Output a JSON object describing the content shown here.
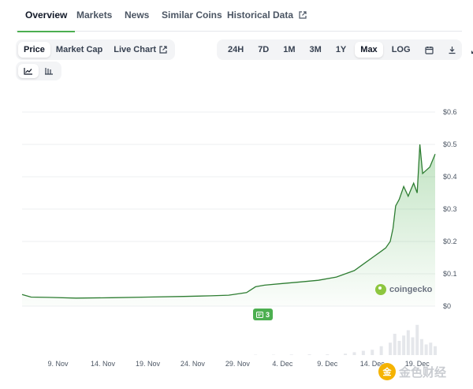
{
  "nav": {
    "tabs": [
      {
        "label": "Overview",
        "active": true
      },
      {
        "label": "Markets"
      },
      {
        "label": "News"
      },
      {
        "label": "Similar Coins"
      },
      {
        "label": "Historical Data",
        "icon": "external-link-icon"
      }
    ]
  },
  "metric_toggle": {
    "items": [
      {
        "label": "Price",
        "active": true
      },
      {
        "label": "Market Cap"
      },
      {
        "label": "Live Chart",
        "icon": "external-link-icon"
      }
    ]
  },
  "range_toggle": {
    "items": [
      {
        "label": "24H"
      },
      {
        "label": "7D"
      },
      {
        "label": "1M"
      },
      {
        "label": "3M"
      },
      {
        "label": "1Y"
      },
      {
        "label": "Max",
        "active": true
      },
      {
        "label": "LOG"
      }
    ],
    "icons": [
      "calendar-icon",
      "download-icon",
      "expand-icon"
    ]
  },
  "chart_type_toggle": {
    "icons": [
      "line-chart-icon",
      "candlestick-icon"
    ],
    "active": "line-chart-icon"
  },
  "watermark": {
    "text": "coingecko"
  },
  "event_badge": {
    "count": "3",
    "icon": "news-icon"
  },
  "corner_logo": {
    "text": "金色财经",
    "icon": "gold-coin-icon"
  },
  "colors": {
    "accent": "#4caf50",
    "line": "#2e7d32",
    "fill": "#c8e6c9"
  },
  "chart_data": {
    "type": "area",
    "x_tick_labels": [
      "9. Nov",
      "14. Nov",
      "19. Nov",
      "24. Nov",
      "29. Nov",
      "4. Dec",
      "9. Dec",
      "14. Dec",
      "19. Dec"
    ],
    "y_tick_labels": [
      "$0",
      "$0.1",
      "$0.2",
      "$0.3",
      "$0.4",
      "$0.5",
      "$0.6"
    ],
    "ylim": [
      0,
      0.6
    ],
    "xlim": [
      4.0,
      50.0
    ],
    "x_unit": "days from 1 Nov",
    "x": [
      4.0,
      5.0,
      7.0,
      10.0,
      14.0,
      18.0,
      22.0,
      25.0,
      27.0,
      29.0,
      30.0,
      31.0,
      33.0,
      35.0,
      37.0,
      39.0,
      40.0,
      41.0,
      42.0,
      43.0,
      44.0,
      44.5,
      45.0,
      45.3,
      45.6,
      46.0,
      46.5,
      47.0,
      47.3,
      47.6,
      48.0,
      48.3,
      48.6,
      49.0,
      49.4,
      49.7,
      50.0
    ],
    "series": [
      {
        "values": [
          0.036,
          0.028,
          0.027,
          0.025,
          0.026,
          0.028,
          0.03,
          0.032,
          0.034,
          0.042,
          0.06,
          0.065,
          0.07,
          0.075,
          0.08,
          0.09,
          0.1,
          0.11,
          0.13,
          0.15,
          0.17,
          0.18,
          0.2,
          0.24,
          0.31,
          0.33,
          0.37,
          0.34,
          0.36,
          0.38,
          0.35,
          0.5,
          0.41,
          0.42,
          0.43,
          0.45,
          0.47
        ]
      }
    ],
    "volume": {
      "x": [
        30,
        32,
        34,
        36,
        38,
        40,
        41,
        42,
        43,
        44,
        45,
        45.5,
        46,
        46.5,
        47,
        47.5,
        48,
        48.5,
        49,
        49.5,
        50
      ],
      "values": [
        0.01,
        0.01,
        0.015,
        0.02,
        0.02,
        0.04,
        0.08,
        0.12,
        0.15,
        0.25,
        0.35,
        0.6,
        0.4,
        0.55,
        0.7,
        0.5,
        0.85,
        0.45,
        0.3,
        0.35,
        0.25
      ]
    },
    "grid": true
  }
}
